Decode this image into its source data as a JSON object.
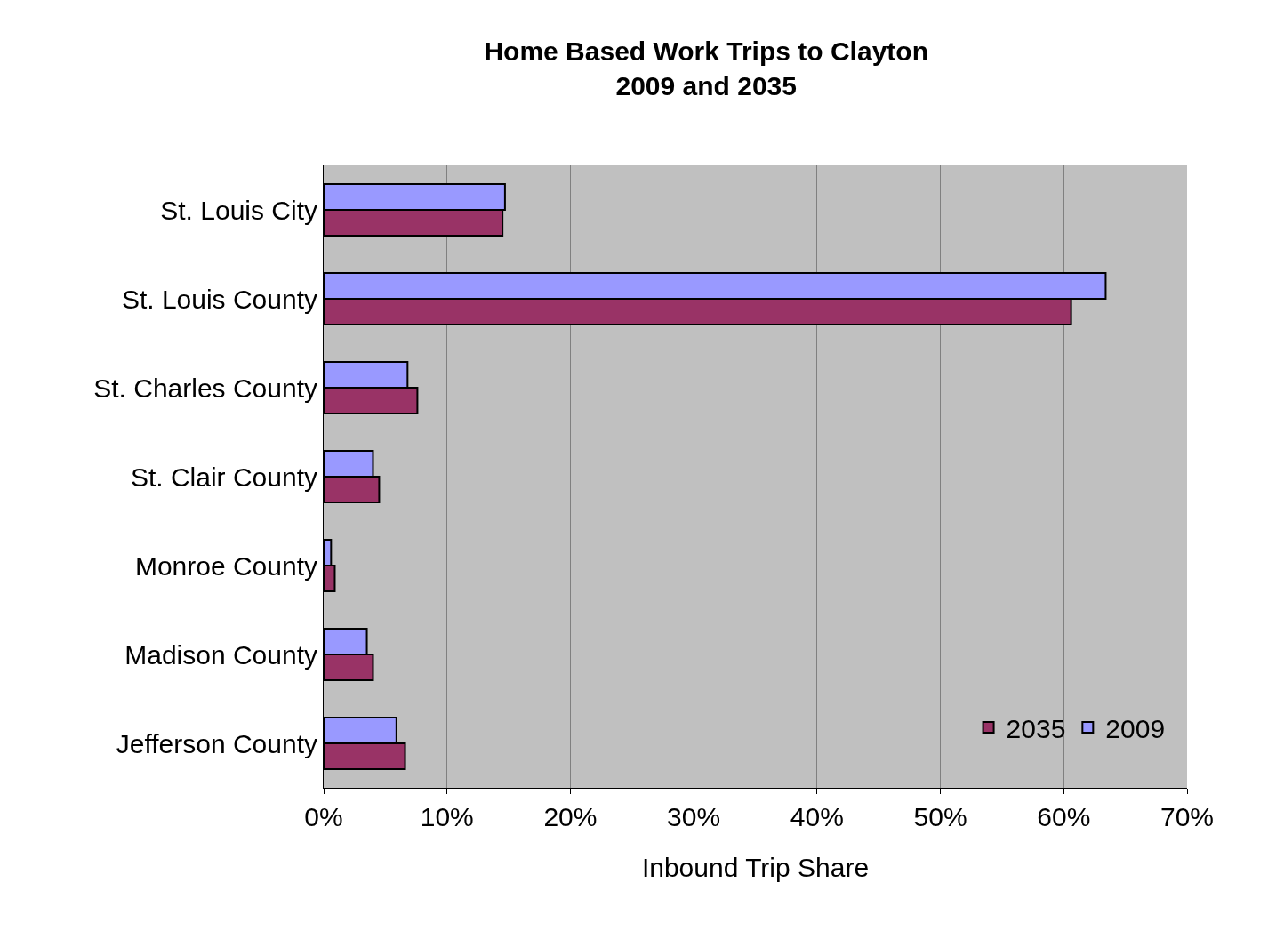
{
  "chart_data": {
    "type": "bar",
    "orientation": "horizontal",
    "title": "Home Based Work Trips to Clayton\n2009 and 2035",
    "xlabel": "Inbound Trip Share",
    "categories": [
      "St. Louis City",
      "St. Louis County",
      "St. Charles County",
      "St. Clair County",
      "Monroe County",
      "Madison County",
      "Jefferson County"
    ],
    "series": [
      {
        "name": "2009",
        "color": "#9999ff",
        "values": [
          14.7,
          63.4,
          6.8,
          4.0,
          0.6,
          3.5,
          5.9
        ]
      },
      {
        "name": "2035",
        "color": "#993366",
        "values": [
          14.5,
          60.6,
          7.6,
          4.5,
          0.9,
          4.0,
          6.6
        ]
      }
    ],
    "xlim": [
      0,
      70
    ],
    "xticks": [
      {
        "value": 0,
        "label": "0%"
      },
      {
        "value": 10,
        "label": "10%"
      },
      {
        "value": 20,
        "label": "20%"
      },
      {
        "value": 30,
        "label": "30%"
      },
      {
        "value": 40,
        "label": "40%"
      },
      {
        "value": 50,
        "label": "50%"
      },
      {
        "value": 60,
        "label": "60%"
      },
      {
        "value": 70,
        "label": "70%"
      }
    ],
    "grid": "x",
    "legend": "bottom right"
  }
}
